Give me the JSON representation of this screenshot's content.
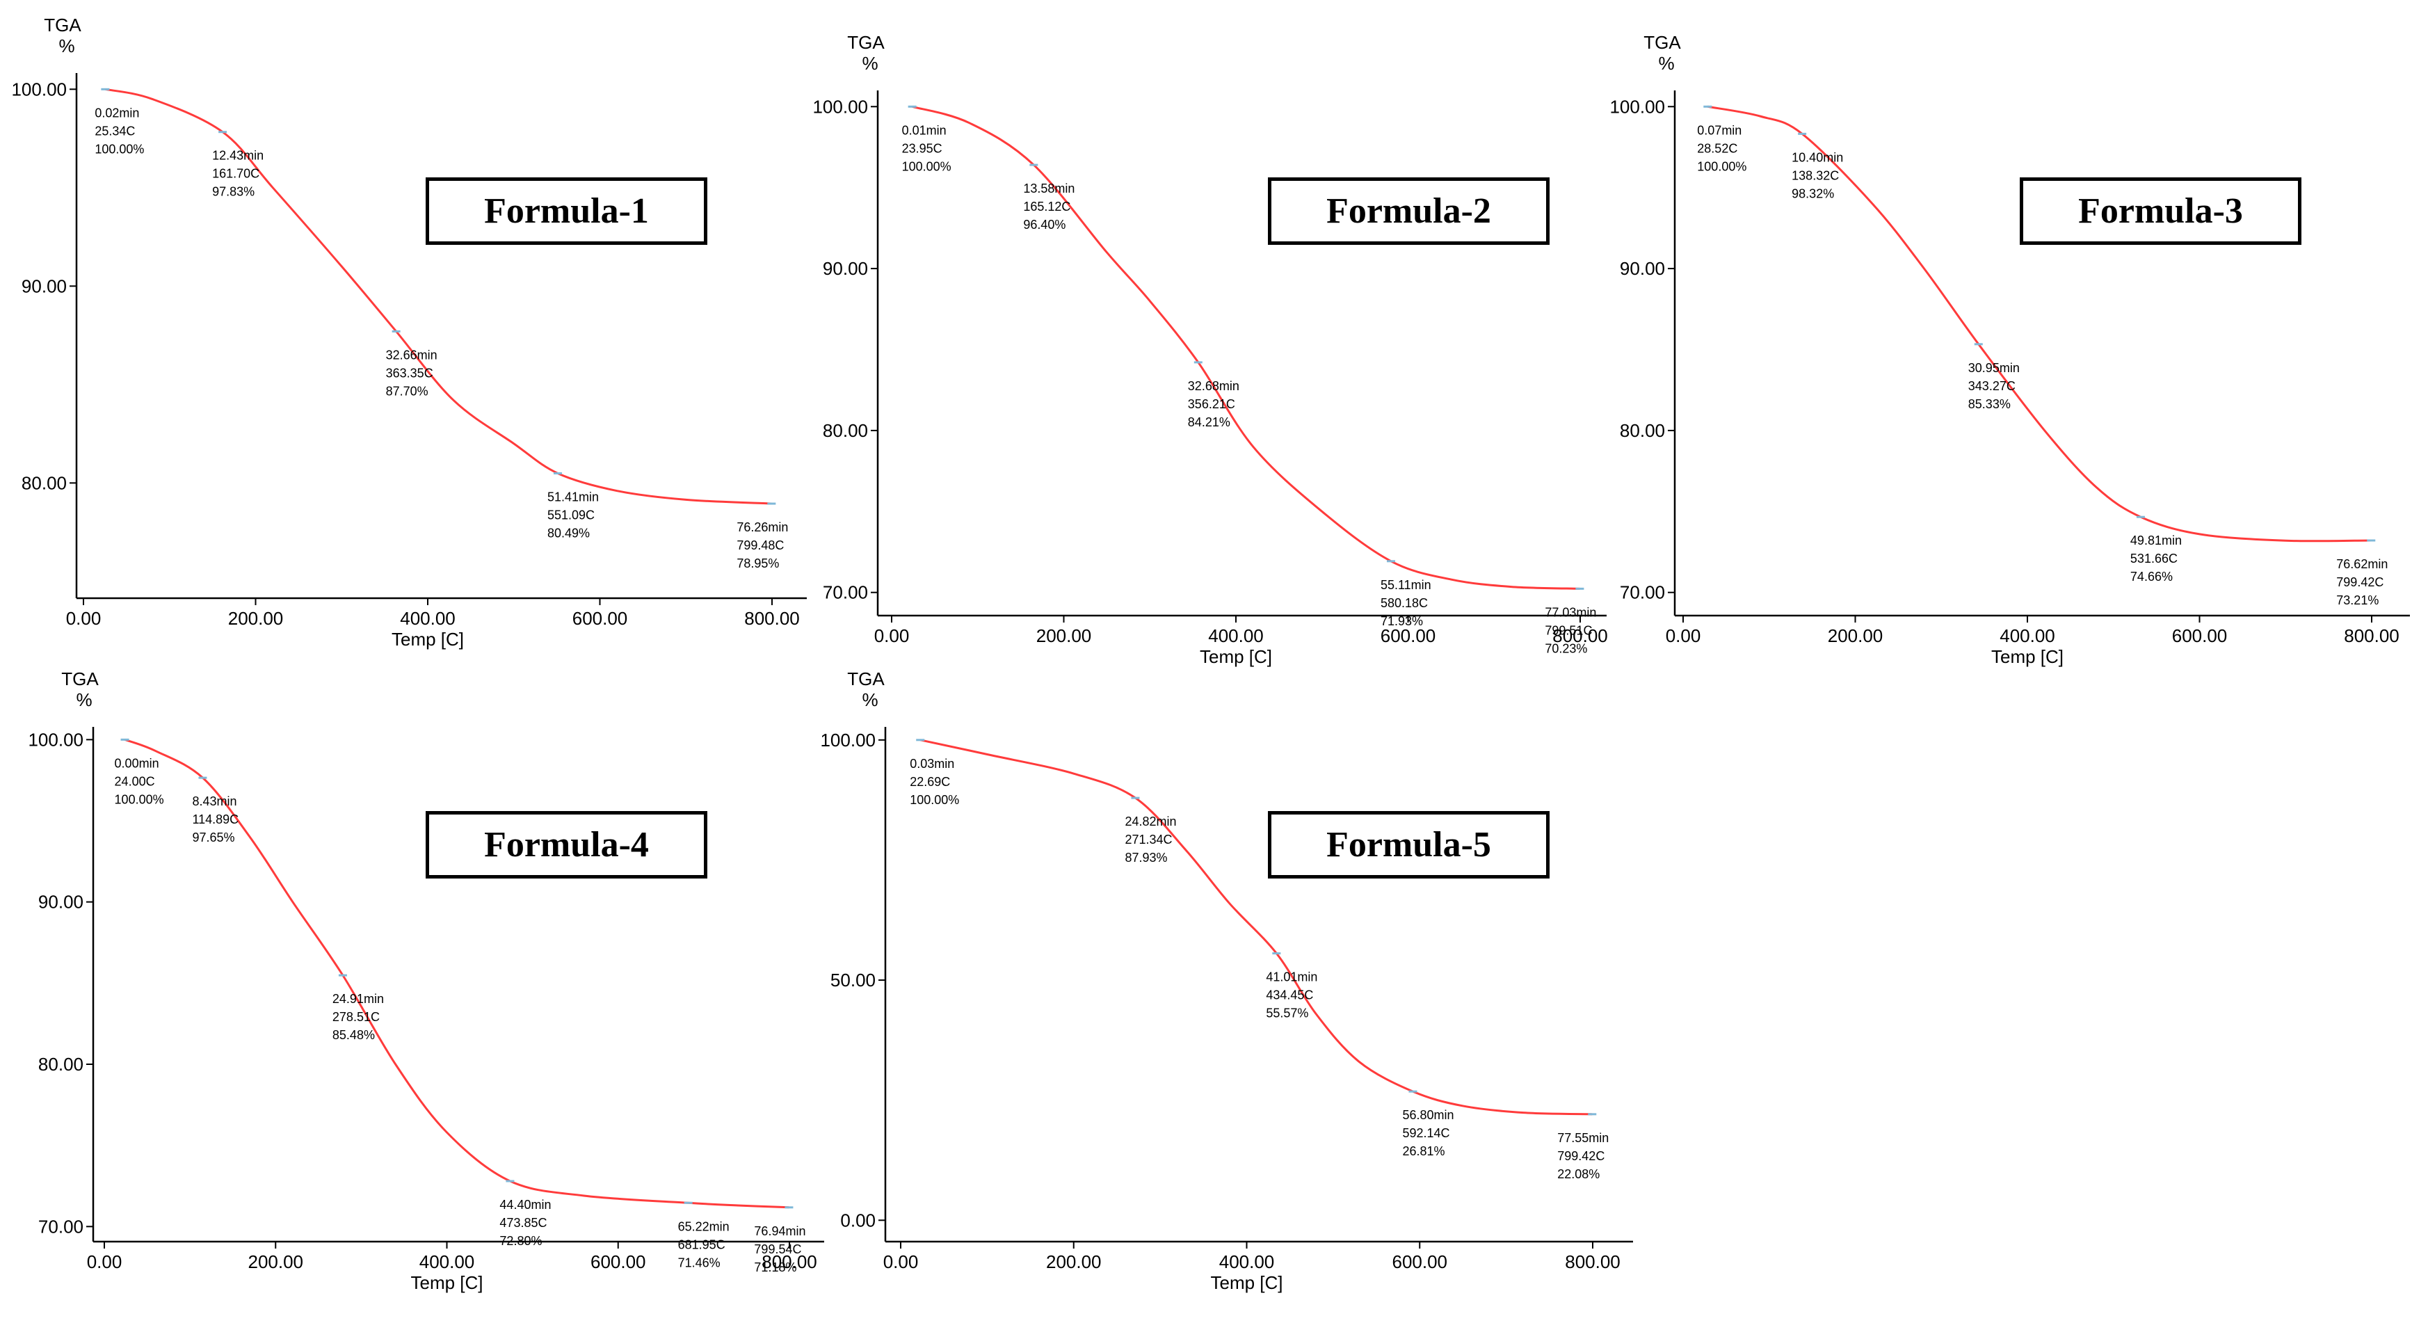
{
  "chart_data": [
    {
      "type": "line",
      "panel_label": "Formula-1",
      "ylabel_top": "TGA",
      "yunit": "%",
      "xlabel": "Temp  [C]",
      "xlim": [
        0,
        800
      ],
      "ylim": [
        74.5,
        101
      ],
      "xticks": [
        "0.00",
        "200.00",
        "400.00",
        "600.00",
        "800.00"
      ],
      "yticks": [
        "80.00",
        "90.00",
        "100.00"
      ],
      "series": [
        {
          "values": [
            [
              25.34,
              100.0
            ],
            [
              80,
              99.5
            ],
            [
              161.7,
              97.83
            ],
            [
              220,
              95.0
            ],
            [
              300,
              91.0
            ],
            [
              363.35,
              87.7
            ],
            [
              430,
              84.2
            ],
            [
              500,
              82.0
            ],
            [
              551.09,
              80.49
            ],
            [
              620,
              79.6
            ],
            [
              700,
              79.15
            ],
            [
              799.48,
              78.95
            ]
          ]
        }
      ],
      "markers": [
        {
          "x": 25.34,
          "y": 100.0,
          "lines": [
            "0.02min",
            "25.34C",
            "100.00%"
          ]
        },
        {
          "x": 161.7,
          "y": 97.83,
          "lines": [
            "12.43min",
            "161.70C",
            "97.83%"
          ]
        },
        {
          "x": 363.35,
          "y": 87.7,
          "lines": [
            "32.66min",
            "363.35C",
            "87.70%"
          ]
        },
        {
          "x": 551.09,
          "y": 80.49,
          "lines": [
            "51.41min",
            "551.09C",
            "80.49%"
          ]
        },
        {
          "x": 799.48,
          "y": 78.95,
          "lines": [
            "76.26min",
            "799.48C",
            "78.95%"
          ]
        }
      ]
    },
    {
      "type": "line",
      "panel_label": "Formula-2",
      "ylabel_top": "TGA",
      "yunit": "%",
      "xlabel": "Temp  [C]",
      "xlim": [
        0,
        800
      ],
      "ylim": [
        69,
        101
      ],
      "xticks": [
        "0.00",
        "200.00",
        "400.00",
        "600.00",
        "800.00"
      ],
      "yticks": [
        "70.00",
        "80.00",
        "90.00",
        "100.00"
      ],
      "series": [
        {
          "values": [
            [
              23.95,
              100.0
            ],
            [
              90,
              99.0
            ],
            [
              165.12,
              96.4
            ],
            [
              250,
              91.0
            ],
            [
              300,
              88.0
            ],
            [
              356.21,
              84.21
            ],
            [
              420,
              79.0
            ],
            [
              500,
              75.0
            ],
            [
              580.18,
              71.93
            ],
            [
              650,
              70.8
            ],
            [
              720,
              70.35
            ],
            [
              799.51,
              70.23
            ]
          ]
        }
      ],
      "markers": [
        {
          "x": 23.95,
          "y": 100.0,
          "lines": [
            "0.01min",
            "23.95C",
            "100.00%"
          ]
        },
        {
          "x": 165.12,
          "y": 96.4,
          "lines": [
            "13.58min",
            "165.12C",
            "96.40%"
          ]
        },
        {
          "x": 356.21,
          "y": 84.21,
          "lines": [
            "32.68min",
            "356.21C",
            "84.21%"
          ]
        },
        {
          "x": 580.18,
          "y": 71.93,
          "lines": [
            "55.11min",
            "580.18C",
            "71.93%"
          ]
        },
        {
          "x": 799.51,
          "y": 70.23,
          "lines": [
            "77.03min",
            "799.51C",
            "70.23%"
          ]
        }
      ]
    },
    {
      "type": "line",
      "panel_label": "Formula-3",
      "ylabel_top": "TGA",
      "yunit": "%",
      "xlabel": "Temp  [C]",
      "xlim": [
        0,
        800
      ],
      "ylim": [
        69,
        101
      ],
      "xticks": [
        "0.00",
        "200.00",
        "400.00",
        "600.00",
        "800.00"
      ],
      "yticks": [
        "70.00",
        "80.00",
        "90.00",
        "100.00"
      ],
      "series": [
        {
          "values": [
            [
              28.52,
              100.0
            ],
            [
              90,
              99.4
            ],
            [
              138.32,
              98.32
            ],
            [
              220,
              94.0
            ],
            [
              280,
              90.0
            ],
            [
              343.27,
              85.33
            ],
            [
              420,
              80.0
            ],
            [
              480,
              76.5
            ],
            [
              531.66,
              74.66
            ],
            [
              600,
              73.6
            ],
            [
              700,
              73.2
            ],
            [
              799.42,
              73.21
            ]
          ]
        }
      ],
      "markers": [
        {
          "x": 28.52,
          "y": 100.0,
          "lines": [
            "0.07min",
            "28.52C",
            "100.00%"
          ]
        },
        {
          "x": 138.32,
          "y": 98.32,
          "lines": [
            "10.40min",
            "138.32C",
            "98.32%"
          ]
        },
        {
          "x": 343.27,
          "y": 85.33,
          "lines": [
            "30.95min",
            "343.27C",
            "85.33%"
          ]
        },
        {
          "x": 531.66,
          "y": 74.66,
          "lines": [
            "49.81min",
            "531.66C",
            "74.66%"
          ]
        },
        {
          "x": 799.42,
          "y": 73.21,
          "lines": [
            "76.62min",
            "799.42C",
            "73.21%"
          ]
        }
      ]
    },
    {
      "type": "line",
      "panel_label": "Formula-4",
      "ylabel_top": "TGA",
      "yunit": "%",
      "xlabel": "Temp  [C]",
      "xlim": [
        0,
        800
      ],
      "ylim": [
        69.5,
        101
      ],
      "xticks": [
        "0.00",
        "200.00",
        "400.00",
        "600.00",
        "800.00"
      ],
      "yticks": [
        "70.00",
        "80.00",
        "90.00",
        "100.00"
      ],
      "series": [
        {
          "values": [
            [
              24.0,
              100.0
            ],
            [
              60,
              99.3
            ],
            [
              114.89,
              97.65
            ],
            [
              170,
              94.0
            ],
            [
              220,
              90.0
            ],
            [
              278.51,
              85.48
            ],
            [
              340,
              80.0
            ],
            [
              400,
              75.8
            ],
            [
              473.85,
              72.8
            ],
            [
              560,
              71.9
            ],
            [
              681.95,
              71.46
            ],
            [
              740,
              71.3
            ],
            [
              799.54,
              71.18
            ]
          ]
        }
      ],
      "markers": [
        {
          "x": 24.0,
          "y": 100.0,
          "lines": [
            "0.00min",
            "24.00C",
            "100.00%"
          ]
        },
        {
          "x": 114.89,
          "y": 97.65,
          "lines": [
            "8.43min",
            "114.89C",
            "97.65%"
          ]
        },
        {
          "x": 278.51,
          "y": 85.48,
          "lines": [
            "24.91min",
            "278.51C",
            "85.48%"
          ]
        },
        {
          "x": 473.85,
          "y": 72.8,
          "lines": [
            "44.40min",
            "473.85C",
            "72.80%"
          ]
        },
        {
          "x": 681.95,
          "y": 71.46,
          "lines": [
            "65.22min",
            "681.95C",
            "71.46%"
          ]
        },
        {
          "x": 799.54,
          "y": 71.18,
          "lines": [
            "76.94min",
            "799.54C",
            "71.18%"
          ]
        }
      ]
    },
    {
      "type": "line",
      "panel_label": "Formula-5",
      "ylabel_top": "TGA",
      "yunit": "%",
      "xlabel": "Temp  [C]",
      "xlim": [
        0,
        800
      ],
      "ylim": [
        -3,
        102
      ],
      "xticks": [
        "0.00",
        "200.00",
        "400.00",
        "600.00",
        "800.00"
      ],
      "yticks": [
        "0.00",
        "50.00",
        "100.00"
      ],
      "series": [
        {
          "values": [
            [
              22.69,
              100.0
            ],
            [
              100,
              97.0
            ],
            [
              200,
              93.0
            ],
            [
              271.34,
              87.93
            ],
            [
              330,
              77.0
            ],
            [
              380,
              66.0
            ],
            [
              434.45,
              55.57
            ],
            [
              480,
              43.0
            ],
            [
              530,
              33.0
            ],
            [
              592.14,
              26.81
            ],
            [
              650,
              23.8
            ],
            [
              720,
              22.4
            ],
            [
              799.42,
              22.08
            ]
          ]
        }
      ],
      "markers": [
        {
          "x": 22.69,
          "y": 100.0,
          "lines": [
            "0.03min",
            "22.69C",
            "100.00%"
          ]
        },
        {
          "x": 271.34,
          "y": 87.93,
          "lines": [
            "24.82min",
            "271.34C",
            "87.93%"
          ]
        },
        {
          "x": 434.45,
          "y": 55.57,
          "lines": [
            "41.01min",
            "434.45C",
            "55.57%"
          ]
        },
        {
          "x": 592.14,
          "y": 26.81,
          "lines": [
            "56.80min",
            "592.14C",
            "26.81%"
          ]
        },
        {
          "x": 799.42,
          "y": 22.08,
          "lines": [
            "77.55min",
            "799.42C",
            "22.08%"
          ]
        }
      ]
    }
  ],
  "style": {
    "curve_color": "#ff3b3b",
    "marker_color": "#7fb8d8",
    "axis_color": "#000000",
    "text_color": "#000000"
  }
}
